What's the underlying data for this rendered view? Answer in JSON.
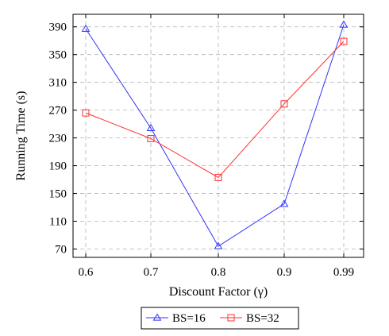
{
  "chart_data": {
    "type": "line",
    "xlabel": "Discount Factor (γ)",
    "ylabel": "Running Time (s)",
    "categories": [
      "0.6",
      "0.7",
      "0.8",
      "0.9",
      "0.99"
    ],
    "yticks": [
      70,
      110,
      150,
      190,
      230,
      270,
      310,
      350,
      390
    ],
    "ylim": [
      58,
      408
    ],
    "grid": true,
    "legend_position": "bottom-center",
    "series": [
      {
        "name": "BS=16",
        "color": "#3333ff",
        "marker": "triangle",
        "values": [
          387,
          244,
          74,
          135,
          393
        ]
      },
      {
        "name": "BS=32",
        "color": "#ff3333",
        "marker": "square",
        "values": [
          266,
          229,
          173,
          279,
          369
        ]
      }
    ]
  }
}
